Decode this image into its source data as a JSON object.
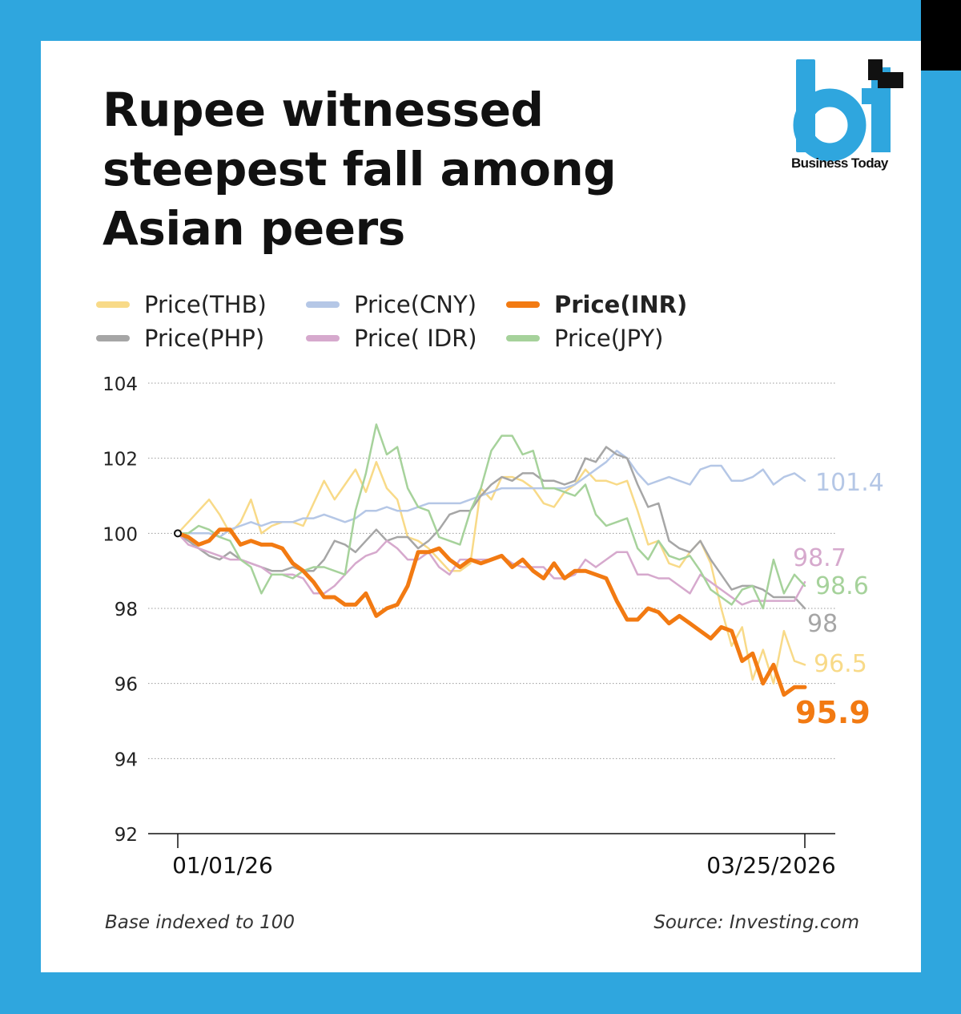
{
  "title": "Rupee witnessed steepest fall among Asian peers",
  "brand": {
    "name": "Business Today",
    "logo_letters": "bt",
    "color": "#2fa6de"
  },
  "footer": {
    "note": "Base indexed to 100",
    "source": "Source: Investing.com"
  },
  "chart_data": {
    "type": "line",
    "x_start_label": "01/01/26",
    "x_end_label": "03/25/2026",
    "y_ticks": [
      "104",
      "102",
      "100",
      "98",
      "96",
      "94",
      "92"
    ],
    "ylim": [
      92,
      104
    ],
    "grid": "dotted-horizontal",
    "legend_position": "top",
    "series": [
      {
        "key": "thb",
        "name": "Price(THB)",
        "color": "#f8da88",
        "width": 2.5,
        "end_label": "96.5",
        "values": [
          100,
          100.3,
          100.6,
          100.9,
          100.5,
          100.0,
          100.3,
          100.9,
          100.0,
          100.2,
          100.3,
          100.3,
          100.2,
          100.8,
          101.4,
          100.9,
          101.3,
          101.7,
          101.1,
          101.9,
          101.2,
          100.9,
          99.9,
          99.8,
          99.6,
          99.3,
          99.0,
          99.0,
          99.2,
          101.2,
          100.9,
          101.5,
          101.5,
          101.4,
          101.2,
          100.8,
          100.7,
          101.1,
          101.3,
          101.7,
          101.4,
          101.4,
          101.3,
          101.4,
          100.6,
          99.7,
          99.8,
          99.2,
          99.1,
          99.5,
          99.8,
          99.2,
          98.0,
          97.0,
          97.5,
          96.1,
          96.9,
          96.0,
          97.4,
          96.6,
          96.5
        ]
      },
      {
        "key": "cny",
        "name": "Price(CNY)",
        "color": "#b5c7e6",
        "width": 2.5,
        "end_label": "101.4",
        "values": [
          100,
          100.0,
          100.0,
          100.0,
          99.9,
          100.1,
          100.2,
          100.3,
          100.2,
          100.3,
          100.3,
          100.3,
          100.4,
          100.4,
          100.5,
          100.4,
          100.3,
          100.4,
          100.6,
          100.6,
          100.7,
          100.6,
          100.6,
          100.7,
          100.8,
          100.8,
          100.8,
          100.8,
          100.9,
          101.0,
          101.1,
          101.2,
          101.2,
          101.2,
          101.2,
          101.2,
          101.2,
          101.2,
          101.3,
          101.5,
          101.7,
          101.9,
          102.2,
          102.0,
          101.6,
          101.3,
          101.4,
          101.5,
          101.4,
          101.3,
          101.7,
          101.8,
          101.8,
          101.4,
          101.4,
          101.5,
          101.7,
          101.3,
          101.5,
          101.6,
          101.4
        ]
      },
      {
        "key": "php",
        "name": "Price(PHP)",
        "color": "#a6a6a6",
        "width": 2.5,
        "end_label": "98",
        "values": [
          100,
          99.8,
          99.6,
          99.4,
          99.3,
          99.5,
          99.3,
          99.2,
          99.1,
          99.0,
          99.0,
          99.1,
          99.0,
          99.0,
          99.3,
          99.8,
          99.7,
          99.5,
          99.8,
          100.1,
          99.8,
          99.9,
          99.9,
          99.6,
          99.8,
          100.1,
          100.5,
          100.6,
          100.6,
          101.0,
          101.3,
          101.5,
          101.4,
          101.6,
          101.6,
          101.4,
          101.4,
          101.3,
          101.4,
          102.0,
          101.9,
          102.3,
          102.1,
          102.0,
          101.3,
          100.7,
          100.8,
          99.8,
          99.6,
          99.5,
          99.8,
          99.3,
          98.9,
          98.5,
          98.6,
          98.6,
          98.5,
          98.3,
          98.3,
          98.3,
          98.0
        ]
      },
      {
        "key": "idr",
        "name": "Price( IDR)",
        "color": "#d6a9cd",
        "width": 2.5,
        "end_label": "98.7",
        "values": [
          100,
          99.7,
          99.6,
          99.5,
          99.4,
          99.3,
          99.3,
          99.2,
          99.1,
          98.9,
          98.9,
          98.9,
          98.8,
          98.4,
          98.4,
          98.6,
          98.9,
          99.2,
          99.4,
          99.5,
          99.8,
          99.6,
          99.3,
          99.3,
          99.5,
          99.1,
          98.9,
          99.3,
          99.3,
          99.3,
          99.3,
          99.4,
          99.2,
          99.1,
          99.1,
          99.1,
          98.8,
          98.8,
          98.9,
          99.3,
          99.1,
          99.3,
          99.5,
          99.5,
          98.9,
          98.9,
          98.8,
          98.8,
          98.6,
          98.4,
          98.9,
          98.7,
          98.5,
          98.3,
          98.1,
          98.2,
          98.2,
          98.2,
          98.2,
          98.2,
          98.7
        ]
      },
      {
        "key": "jpy",
        "name": "Price(JPY)",
        "color": "#a6d29b",
        "width": 2.5,
        "end_label": "98.6",
        "values": [
          100,
          100.0,
          100.2,
          100.1,
          99.9,
          99.8,
          99.3,
          99.1,
          98.4,
          98.9,
          98.9,
          98.8,
          99.0,
          99.1,
          99.1,
          99.0,
          98.9,
          100.6,
          101.6,
          102.9,
          102.1,
          102.3,
          101.2,
          100.7,
          100.6,
          99.9,
          99.8,
          99.7,
          100.6,
          101.2,
          102.2,
          102.6,
          102.6,
          102.1,
          102.2,
          101.2,
          101.2,
          101.1,
          101.0,
          101.3,
          100.5,
          100.2,
          100.3,
          100.4,
          99.6,
          99.3,
          99.8,
          99.4,
          99.3,
          99.4,
          99.0,
          98.5,
          98.3,
          98.1,
          98.5,
          98.6,
          98.0,
          99.3,
          98.4,
          98.9,
          98.6
        ]
      },
      {
        "key": "inr",
        "name": "Price(INR)",
        "color": "#f27a12",
        "width": 5,
        "bold": true,
        "end_label": "95.9",
        "values": [
          100,
          99.9,
          99.7,
          99.8,
          100.1,
          100.1,
          99.7,
          99.8,
          99.7,
          99.7,
          99.6,
          99.2,
          99.0,
          98.7,
          98.3,
          98.3,
          98.1,
          98.1,
          98.4,
          97.8,
          98.0,
          98.1,
          98.6,
          99.5,
          99.5,
          99.6,
          99.3,
          99.1,
          99.3,
          99.2,
          99.3,
          99.4,
          99.1,
          99.3,
          99.0,
          98.8,
          99.2,
          98.8,
          99.0,
          99.0,
          98.9,
          98.8,
          98.2,
          97.7,
          97.7,
          98.0,
          97.9,
          97.6,
          97.8,
          97.6,
          97.4,
          97.2,
          97.5,
          97.4,
          96.6,
          96.8,
          96.0,
          96.5,
          95.7,
          95.9,
          95.9
        ]
      }
    ]
  }
}
